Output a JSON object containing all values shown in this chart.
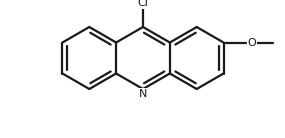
{
  "bg_color": "#ffffff",
  "line_color": "#1a1a1a",
  "line_width": 1.6,
  "fig_width": 2.85,
  "fig_height": 1.38,
  "dpi": 100,
  "Cl_label": "Cl",
  "N_label": "N",
  "O_label": "O",
  "cl_fontsize": 8.0,
  "n_fontsize": 8.0,
  "o_fontsize": 8.0,
  "me_fontsize": 7.5
}
